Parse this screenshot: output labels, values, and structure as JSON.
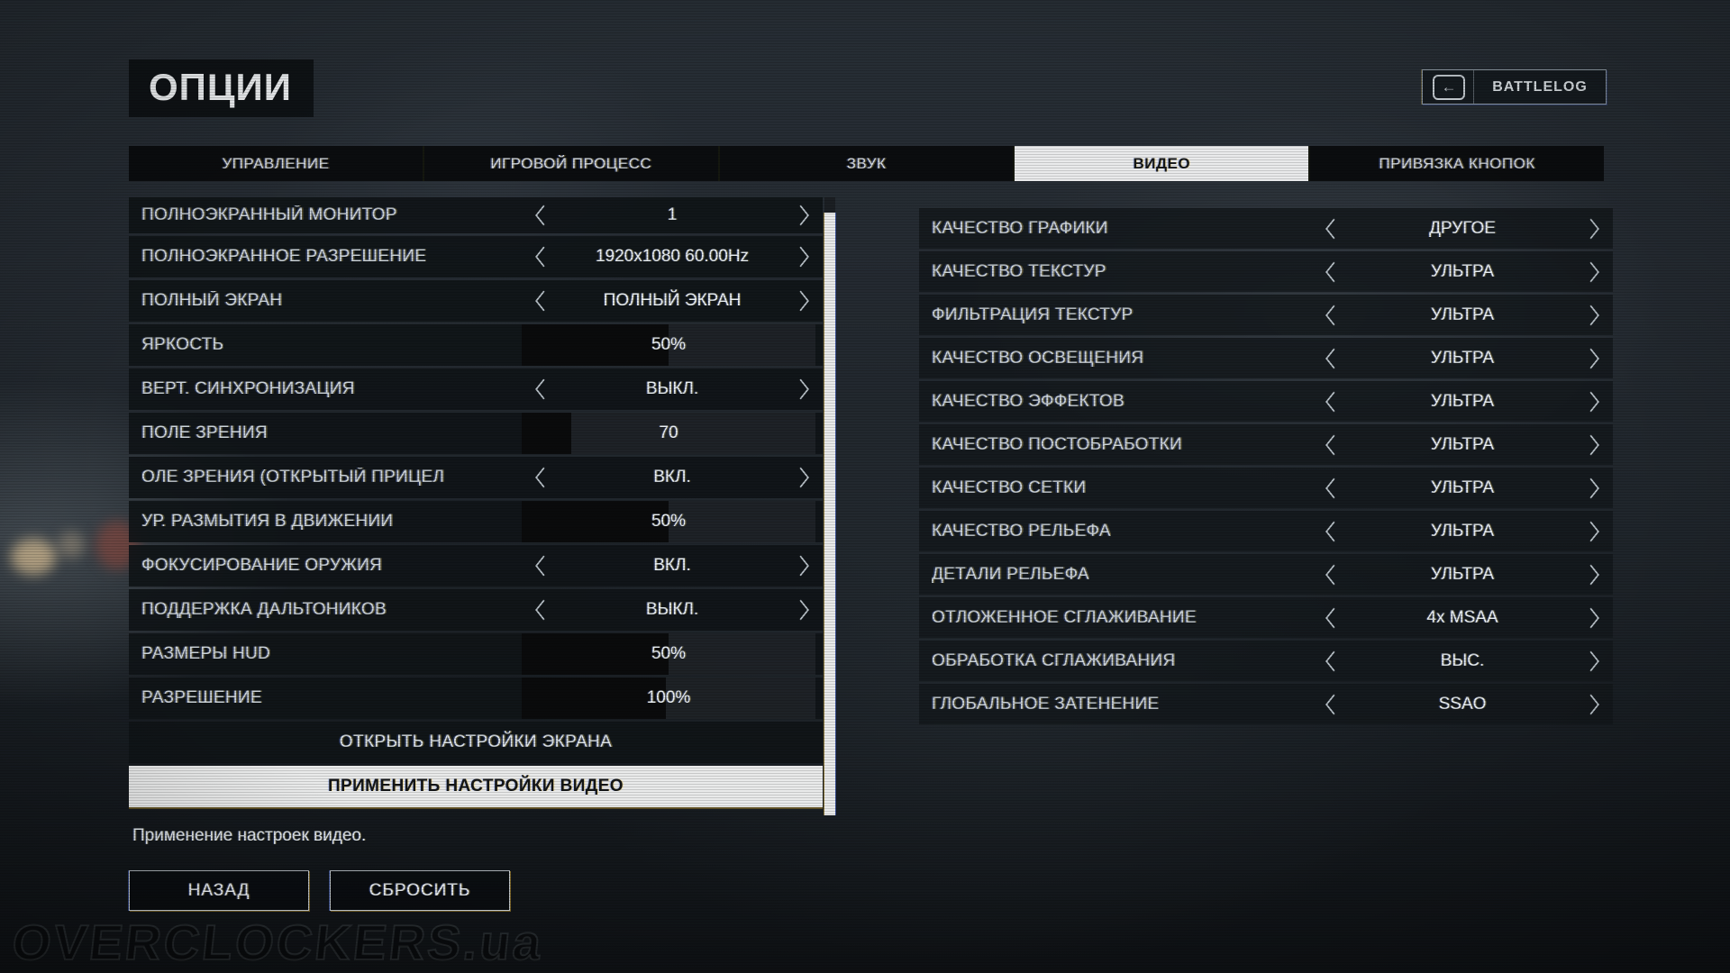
{
  "title": "ОПЦИИ",
  "battlelog": {
    "label": "BATTLELOG",
    "icon": "back-arrow",
    "arrow_glyph": "←"
  },
  "tabs": [
    {
      "id": "controls",
      "label": "УПРАВЛЕНИЕ",
      "active": false
    },
    {
      "id": "gameplay",
      "label": "ИГРОВОЙ ПРОЦЕСС",
      "active": false
    },
    {
      "id": "audio",
      "label": "ЗВУК",
      "active": false
    },
    {
      "id": "video",
      "label": "ВИДЕО",
      "active": true
    },
    {
      "id": "key-bindings",
      "label": "ПРИВЯЗКА КНОПОК",
      "active": false
    }
  ],
  "left_panel": {
    "rows": [
      {
        "id": "fullscreen-monitor",
        "type": "stepper",
        "label": "ПОЛНОЭКРАННЫЙ МОНИТОР",
        "value": "1",
        "clipped": true
      },
      {
        "id": "fullscreen-resolution",
        "type": "stepper",
        "label": "ПОЛНОЭКРАННОЕ РАЗРЕШЕНИЕ",
        "value": "1920x1080 60.00Hz"
      },
      {
        "id": "fullscreen-mode",
        "type": "stepper",
        "label": "ПОЛНЫЙ ЭКРАН",
        "value": "ПОЛНЫЙ ЭКРАН"
      },
      {
        "id": "brightness",
        "type": "slider",
        "label": "ЯРКОСТЬ",
        "value": "50%",
        "fill": 50
      },
      {
        "id": "vsync",
        "type": "stepper",
        "label": "ВЕРТ. СИНХРОНИЗАЦИЯ",
        "value": "ВЫКЛ."
      },
      {
        "id": "fov",
        "type": "slider",
        "label": "ПОЛЕ ЗРЕНИЯ",
        "value": "70",
        "fill": 17
      },
      {
        "id": "fov-ads",
        "type": "stepper",
        "label": "ОЛЕ ЗРЕНИЯ (ОТКРЫТЫЙ ПРИЦЕЛ",
        "value": "ВКЛ."
      },
      {
        "id": "motion-blur",
        "type": "slider",
        "label": "УР. РАЗМЫТИЯ В ДВИЖЕНИИ",
        "value": "50%",
        "fill": 50
      },
      {
        "id": "weapon-dof",
        "type": "stepper",
        "label": "ФОКУСИРОВАНИЕ ОРУЖИЯ",
        "value": "ВКЛ."
      },
      {
        "id": "colorblind",
        "type": "stepper",
        "label": "ПОДДЕРЖКА ДАЛЬТОНИКОВ",
        "value": "ВЫКЛ."
      },
      {
        "id": "hud-size",
        "type": "slider",
        "label": "РАЗМЕРЫ HUD",
        "value": "50%",
        "fill": 50
      },
      {
        "id": "resolution-scale",
        "type": "slider",
        "label": "РАЗРЕШЕНИЕ",
        "value": "100%",
        "fill": 49
      },
      {
        "id": "open-screen-settings",
        "type": "button",
        "label": "ОТКРЫТЬ НАСТРОЙКИ ЭКРАНА"
      },
      {
        "id": "apply-video-settings",
        "type": "button-highlight",
        "label": "ПРИМЕНИТЬ НАСТРОЙКИ ВИДЕО"
      }
    ],
    "hint": "Применение настроек видео."
  },
  "right_panel": {
    "rows": [
      {
        "id": "graphics-quality",
        "type": "stepper",
        "label": "КАЧЕСТВО ГРАФИКИ",
        "value": "ДРУГОЕ"
      },
      {
        "id": "texture-quality",
        "type": "stepper",
        "label": "КАЧЕСТВО ТЕКСТУР",
        "value": "УЛЬТРА"
      },
      {
        "id": "texture-filtering",
        "type": "stepper",
        "label": "ФИЛЬТРАЦИЯ ТЕКСТУР",
        "value": "УЛЬТРА"
      },
      {
        "id": "lighting-quality",
        "type": "stepper",
        "label": "КАЧЕСТВО ОСВЕЩЕНИЯ",
        "value": "УЛЬТРА"
      },
      {
        "id": "effects-quality",
        "type": "stepper",
        "label": "КАЧЕСТВО ЭФФЕКТОВ",
        "value": "УЛЬТРА"
      },
      {
        "id": "postprocess-quality",
        "type": "stepper",
        "label": "КАЧЕСТВО ПОСТОБРАБОТКИ",
        "value": "УЛЬТРА"
      },
      {
        "id": "mesh-quality",
        "type": "stepper",
        "label": "КАЧЕСТВО СЕТКИ",
        "value": "УЛЬТРА"
      },
      {
        "id": "terrain-quality",
        "type": "stepper",
        "label": "КАЧЕСТВО РЕЛЬЕФА",
        "value": "УЛЬТРА"
      },
      {
        "id": "terrain-decoration",
        "type": "stepper",
        "label": "ДЕТАЛИ РЕЛЬЕФА",
        "value": "УЛЬТРА"
      },
      {
        "id": "deferred-antialiasing",
        "type": "stepper",
        "label": "ОТЛОЖЕННОЕ СГЛАЖИВАНИЕ",
        "value": "4x MSAA"
      },
      {
        "id": "antialiasing-post",
        "type": "stepper",
        "label": "ОБРАБОТКА СГЛАЖИВАНИЯ",
        "value": "ВЫС."
      },
      {
        "id": "ambient-occlusion",
        "type": "stepper",
        "label": "ГЛОБАЛЬНОЕ ЗАТЕНЕНИЕ",
        "value": "SSAO"
      }
    ]
  },
  "footer": {
    "back": "НАЗАД",
    "reset": "СБРОСИТЬ"
  },
  "watermark": "OVERCLOCKERS.ua",
  "colors": {
    "active_tab_bg": "#e9eaeb",
    "row_bg": "#10141a",
    "slider_fill": "#0a0b0c",
    "label_text": "#ccd4d9",
    "value_text": "#eaf0f3",
    "chromatic_blue": "#5a82ff",
    "chromatic_yellow": "#ffd764"
  }
}
